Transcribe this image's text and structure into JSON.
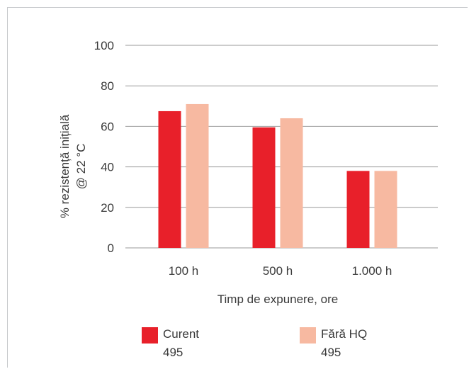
{
  "chart_data": {
    "type": "bar",
    "categories": [
      "100 h",
      "500 h",
      "1.000 h"
    ],
    "series": [
      {
        "name": "Curent",
        "code": "495",
        "color": "#e8202a",
        "values": [
          67.5,
          59.5,
          38
        ]
      },
      {
        "name": "Fără HQ",
        "code": "495",
        "color": "#f7b9a1",
        "values": [
          71,
          64,
          38
        ]
      }
    ],
    "ylabel_line1": "% rezistență inițială",
    "ylabel_line2": "@ 22 °C",
    "xlabel": "Timp de expunere, ore",
    "ylim": [
      0,
      100
    ],
    "yticks": [
      0,
      20,
      40,
      60,
      80,
      100
    ],
    "grid": true,
    "legend_position": "bottom"
  }
}
